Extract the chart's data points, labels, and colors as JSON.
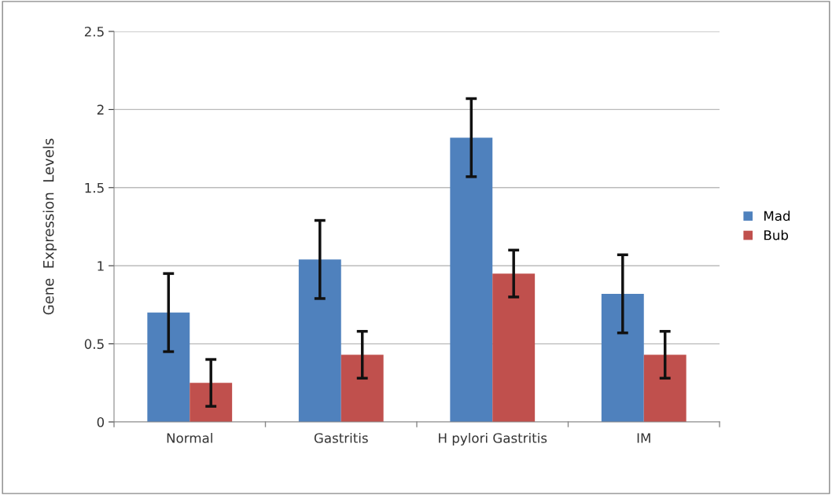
{
  "chart_data": {
    "type": "bar",
    "ylabel": "Gene  Expression  Levels",
    "categories": [
      "Normal",
      "Gastritis",
      "H pylori Gastritis",
      "IM"
    ],
    "series": [
      {
        "name": "Mad",
        "color": "#4f81bd",
        "values": [
          0.7,
          1.04,
          1.82,
          0.82
        ],
        "errors": [
          0.25,
          0.25,
          0.25,
          0.25
        ]
      },
      {
        "name": "Bub",
        "color": "#c0504d",
        "values": [
          0.25,
          0.43,
          0.95,
          0.43
        ],
        "errors": [
          0.15,
          0.15,
          0.15,
          0.15
        ]
      }
    ],
    "ylim": [
      0,
      2.5
    ],
    "yticks": [
      0,
      0.5,
      1,
      1.5,
      2,
      2.5
    ],
    "grid": "y",
    "legend": "right"
  }
}
